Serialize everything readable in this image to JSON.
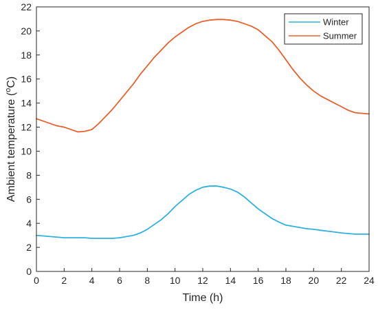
{
  "chart_data": {
    "type": "line",
    "title": "",
    "xlabel": "Time (h)",
    "ylabel": "Ambient temperature (oC)",
    "ylabel_parts": {
      "before": "Ambient temperature (",
      "sup": "o",
      "after": "C)"
    },
    "xlim": [
      0,
      24
    ],
    "ylim": [
      0,
      22
    ],
    "xticks": [
      0,
      2,
      4,
      6,
      8,
      10,
      12,
      14,
      16,
      18,
      20,
      22,
      24
    ],
    "yticks": [
      0,
      2,
      4,
      6,
      8,
      10,
      12,
      14,
      16,
      18,
      20,
      22
    ],
    "grid": false,
    "legend_position": "top-right",
    "x": [
      0,
      0.5,
      1,
      1.5,
      2,
      2.5,
      3,
      3.5,
      4,
      4.5,
      5,
      5.5,
      6,
      6.5,
      7,
      7.5,
      8,
      8.5,
      9,
      9.5,
      10,
      10.5,
      11,
      11.5,
      12,
      12.5,
      13,
      13.5,
      14,
      14.5,
      15,
      15.5,
      16,
      16.5,
      17,
      17.5,
      18,
      18.5,
      19,
      19.5,
      20,
      20.5,
      21,
      21.5,
      22,
      22.5,
      23,
      23.5,
      24
    ],
    "series": [
      {
        "name": "Winter",
        "color": "#2eb1de",
        "values": [
          3.0,
          2.95,
          2.9,
          2.85,
          2.8,
          2.8,
          2.8,
          2.8,
          2.75,
          2.75,
          2.75,
          2.75,
          2.8,
          2.9,
          3.0,
          3.2,
          3.5,
          3.9,
          4.3,
          4.8,
          5.4,
          5.9,
          6.4,
          6.75,
          7.0,
          7.1,
          7.1,
          7.0,
          6.85,
          6.6,
          6.2,
          5.7,
          5.2,
          4.8,
          4.4,
          4.1,
          3.85,
          3.75,
          3.65,
          3.55,
          3.5,
          3.42,
          3.35,
          3.28,
          3.2,
          3.15,
          3.1,
          3.1,
          3.1
        ]
      },
      {
        "name": "Summer",
        "color": "#e8602b",
        "values": [
          12.7,
          12.5,
          12.3,
          12.1,
          12.0,
          11.8,
          11.6,
          11.65,
          11.8,
          12.3,
          12.9,
          13.5,
          14.2,
          14.9,
          15.6,
          16.4,
          17.1,
          17.8,
          18.4,
          19.0,
          19.5,
          19.9,
          20.3,
          20.6,
          20.8,
          20.9,
          20.95,
          20.95,
          20.9,
          20.8,
          20.6,
          20.4,
          20.1,
          19.6,
          19.1,
          18.4,
          17.6,
          16.8,
          16.1,
          15.5,
          15.0,
          14.6,
          14.3,
          14.0,
          13.7,
          13.4,
          13.2,
          13.15,
          13.1
        ]
      }
    ]
  }
}
